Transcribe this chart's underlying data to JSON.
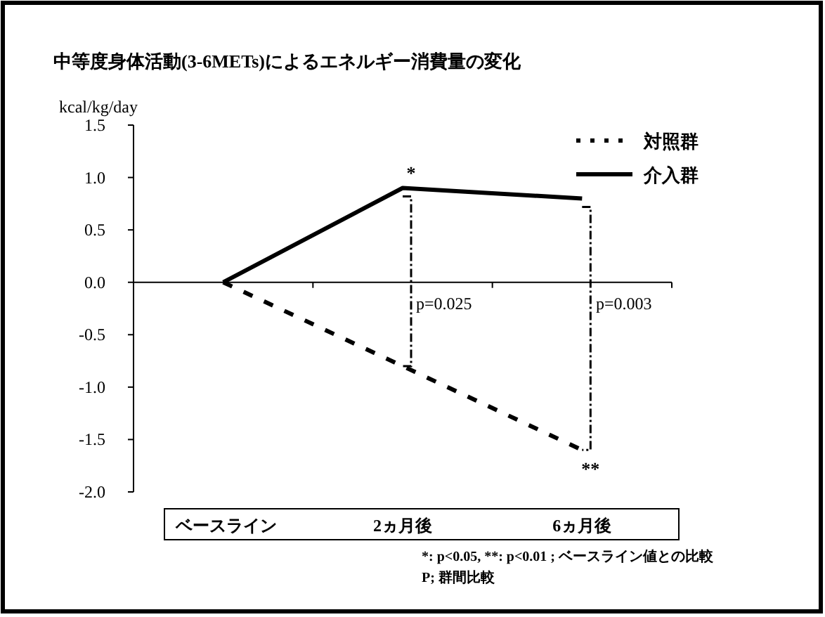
{
  "chart_data": {
    "type": "line",
    "title": "中等度身体活動(3-6METs)によるエネルギー消費量の変化",
    "ylabel": "kcal/kg/day",
    "categories": [
      "ベースライン",
      "2ヵ月後",
      "6ヵ月後"
    ],
    "series": [
      {
        "name": "対照群",
        "color": "#000000",
        "line_style": "dashed",
        "values": [
          0,
          -0.8,
          -1.6
        ]
      },
      {
        "name": "介入群",
        "color": "#000000",
        "line_style": "solid",
        "values": [
          0,
          0.9,
          0.8
        ]
      }
    ],
    "ylim": [
      -2,
      1.5
    ],
    "yticks": [
      {
        "value": 1.5,
        "label": "1.5"
      },
      {
        "value": 1,
        "label": "1.0"
      },
      {
        "value": 0.5,
        "label": "0.5"
      },
      {
        "value": 0,
        "label": "0.0"
      },
      {
        "value": -0.5,
        "label": "-0.5"
      },
      {
        "value": -1,
        "label": "-1.0"
      },
      {
        "value": -1.5,
        "label": "-1.5"
      },
      {
        "value": -2,
        "label": "-2.0"
      }
    ],
    "legend": "top right",
    "annotations": [
      "p=0.025",
      "p=0.003",
      {
        "text": "*",
        "x": "2ヵ月後",
        "y": 0.9
      },
      {
        "text": "**",
        "x": "6ヵ月後",
        "y": -1.6
      },
      "*: p<0.05, **: p<0.01 ; ベースライン値との比較",
      "P; 群間比較"
    ]
  }
}
